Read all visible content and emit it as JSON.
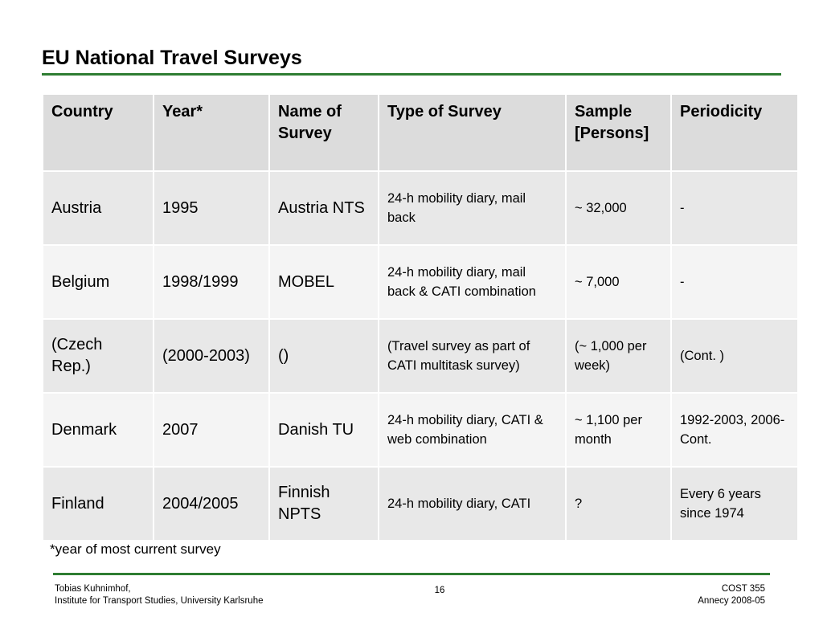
{
  "title": "EU National Travel Surveys",
  "table": {
    "headers": [
      "Country",
      "Year*",
      "Name of Survey",
      "Type of Survey",
      "Sample [Persons]",
      "Periodicity"
    ],
    "rows": [
      [
        "Austria",
        "1995",
        "Austria NTS",
        "24-h mobility diary, mail back",
        "~ 32,000",
        "-"
      ],
      [
        "Belgium",
        "1998/1999",
        "MOBEL",
        "24-h mobility diary, mail back & CATI combination",
        "~ 7,000",
        "-"
      ],
      [
        "(Czech Rep.)",
        "(2000-2003)",
        "()",
        "(Travel survey as part of CATI multitask survey)",
        "(~ 1,000 per week)",
        "(Cont. )"
      ],
      [
        "Denmark",
        "2007",
        "Danish TU",
        "24-h mobility diary, CATI & web combination",
        "~ 1,100 per month",
        "1992-2003, 2006- Cont."
      ],
      [
        "Finland",
        "2004/2005",
        "Finnish NPTS",
        "24-h mobility diary, CATI",
        "?",
        "Every 6 years since 1974"
      ]
    ]
  },
  "footnote": "*year of most current survey",
  "footer": {
    "author": "Tobias Kuhnimhof,",
    "institute": "Institute for Transport Studies, University Karlsruhe",
    "page": "16",
    "project": "COST 355",
    "event": "Annecy 2008-05"
  },
  "colors": {
    "rule": "#2e7d32",
    "header_bg": "#dcdcdc",
    "row_dark": "#e8e8e8",
    "row_light": "#f4f4f4"
  }
}
